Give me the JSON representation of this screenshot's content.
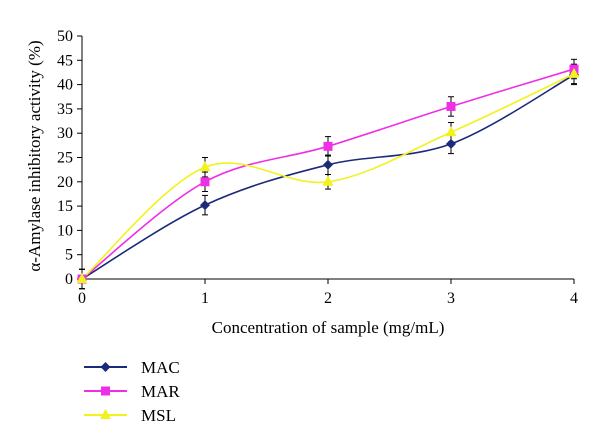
{
  "chart_data": {
    "type": "line",
    "smooth": true,
    "xlabel": "Concentration of sample (mg/mL)",
    "ylabel": "α-Amylase inhibitory activity (%)",
    "x": [
      0,
      1,
      2,
      3,
      4
    ],
    "x_ticks": [
      "0",
      "1",
      "2",
      "3",
      "4"
    ],
    "y_ticks": [
      "0",
      "5",
      "10",
      "15",
      "20",
      "25",
      "30",
      "35",
      "40",
      "45",
      "50"
    ],
    "xlim": [
      0,
      4
    ],
    "ylim": [
      0,
      50
    ],
    "grid": false,
    "legend_position": "bottom-left",
    "series": [
      {
        "name": "MAC",
        "marker": "diamond",
        "color": "#1c2a7a",
        "values": [
          0,
          15.2,
          23.5,
          27.8,
          42.0
        ],
        "errors": [
          2.0,
          2.0,
          2.0,
          2.0,
          2.0
        ]
      },
      {
        "name": "MAR",
        "marker": "square",
        "color": "#ee2fe6",
        "values": [
          0,
          20.0,
          27.3,
          35.5,
          43.2
        ],
        "errors": [
          2.0,
          2.0,
          2.0,
          2.0,
          2.0
        ]
      },
      {
        "name": "MSL",
        "marker": "triangle",
        "color": "#f2f21c",
        "values": [
          0,
          23.0,
          20.0,
          30.2,
          42.2
        ],
        "errors": [
          2.0,
          2.0,
          1.5,
          2.0,
          2.0
        ]
      }
    ]
  }
}
